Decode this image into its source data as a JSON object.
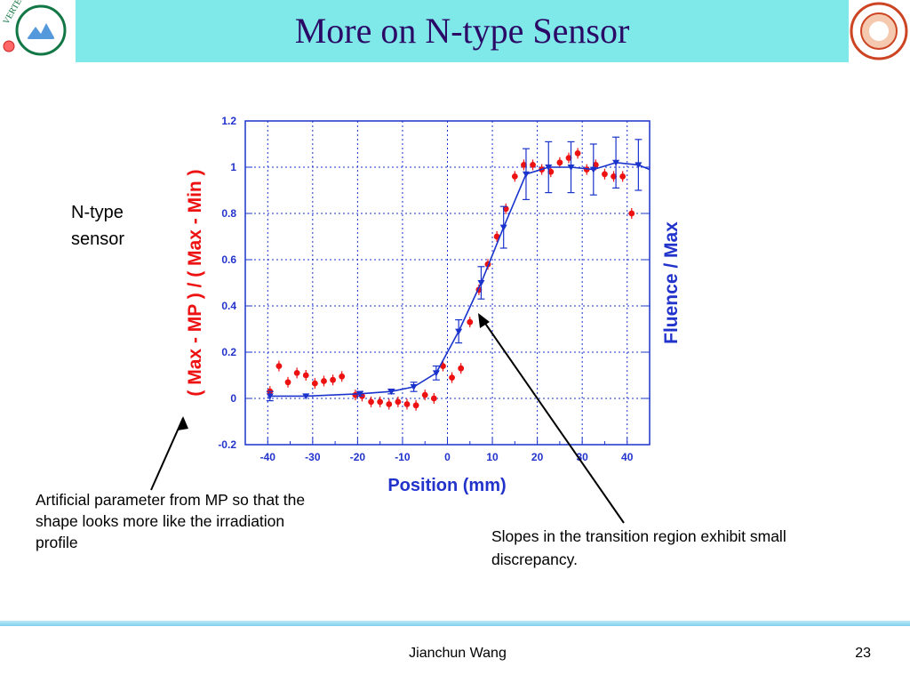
{
  "slide": {
    "title": "More on N-type Sensor",
    "label": "N-type\nsensor",
    "note_left": "Artificial parameter from MP so that the shape looks more like the irradiation profile",
    "note_right": "Slopes in the transition region exhibit small discrepancy.",
    "footer_author": "Jianchun Wang",
    "footer_page": "23"
  },
  "logos": {
    "left_text": "VERTEX LOCATOR",
    "right_text": "SYRACUSE UNIVERSITY FOUNDED AD 1870"
  },
  "chart_data": {
    "type": "scatter",
    "xlabel": "Position (mm)",
    "ylabel_left": "( Max - MP ) / ( Max - Min )",
    "ylabel_right": "Fluence / Max",
    "xlim": [
      -45,
      45
    ],
    "ylim": [
      -0.2,
      1.2
    ],
    "xticks": [
      -40,
      -30,
      -20,
      -10,
      0,
      10,
      20,
      30,
      40
    ],
    "yticks": [
      -0.2,
      0,
      0.2,
      0.4,
      0.6,
      0.8,
      1,
      1.2
    ],
    "grid": true,
    "colors": {
      "red_series": "#ee1111",
      "blue_series": "#1a33cc",
      "axis_labels": "#2233cc"
    },
    "series": [
      {
        "marker": "circle",
        "points": [
          {
            "x": -39.5,
            "y": 0.03
          },
          {
            "x": -37.5,
            "y": 0.14
          },
          {
            "x": -35.5,
            "y": 0.07
          },
          {
            "x": -33.5,
            "y": 0.11
          },
          {
            "x": -31.5,
            "y": 0.1
          },
          {
            "x": -29.5,
            "y": 0.065
          },
          {
            "x": -27.5,
            "y": 0.075
          },
          {
            "x": -25.5,
            "y": 0.08
          },
          {
            "x": -23.5,
            "y": 0.095
          },
          {
            "x": -20.5,
            "y": 0.015
          },
          {
            "x": -19,
            "y": 0.01
          },
          {
            "x": -17,
            "y": -0.015
          },
          {
            "x": -15,
            "y": -0.015
          },
          {
            "x": -13,
            "y": -0.025
          },
          {
            "x": -11,
            "y": -0.015
          },
          {
            "x": -9,
            "y": -0.025
          },
          {
            "x": -7,
            "y": -0.03
          },
          {
            "x": -5,
            "y": 0.015
          },
          {
            "x": -3,
            "y": 0.0
          },
          {
            "x": -1,
            "y": 0.14
          },
          {
            "x": 1,
            "y": 0.09
          },
          {
            "x": 3,
            "y": 0.13
          },
          {
            "x": 5,
            "y": 0.33
          },
          {
            "x": 7,
            "y": 0.47
          },
          {
            "x": 9,
            "y": 0.58
          },
          {
            "x": 11,
            "y": 0.7
          },
          {
            "x": 13,
            "y": 0.82
          },
          {
            "x": 15,
            "y": 0.96
          },
          {
            "x": 17,
            "y": 1.01
          },
          {
            "x": 19,
            "y": 1.01
          },
          {
            "x": 21,
            "y": 0.99
          },
          {
            "x": 23,
            "y": 0.98
          },
          {
            "x": 25,
            "y": 1.02
          },
          {
            "x": 27,
            "y": 1.04
          },
          {
            "x": 29,
            "y": 1.06
          },
          {
            "x": 31,
            "y": 0.99
          },
          {
            "x": 33,
            "y": 1.01
          },
          {
            "x": 35,
            "y": 0.97
          },
          {
            "x": 37,
            "y": 0.96
          },
          {
            "x": 39,
            "y": 0.96
          },
          {
            "x": 41,
            "y": 0.8
          }
        ]
      },
      {
        "marker": "triangle-down",
        "connected": true,
        "points": [
          {
            "x": -39.5,
            "y": 0.01,
            "err": 0.02
          },
          {
            "x": -31.5,
            "y": 0.01,
            "err": 0.0
          },
          {
            "x": -19.5,
            "y": 0.02,
            "err": 0.01
          },
          {
            "x": -12.5,
            "y": 0.03,
            "err": 0.01
          },
          {
            "x": -7.5,
            "y": 0.05,
            "err": 0.02
          },
          {
            "x": -2.5,
            "y": 0.11,
            "err": 0.03
          },
          {
            "x": 2.5,
            "y": 0.29,
            "err": 0.05
          },
          {
            "x": 7.5,
            "y": 0.5,
            "err": 0.07
          },
          {
            "x": 12.5,
            "y": 0.74,
            "err": 0.09
          },
          {
            "x": 17.5,
            "y": 0.97,
            "err": 0.11
          },
          {
            "x": 22.5,
            "y": 1.0,
            "err": 0.11
          },
          {
            "x": 27.5,
            "y": 1.0,
            "err": 0.11
          },
          {
            "x": 32.5,
            "y": 0.99,
            "err": 0.11
          },
          {
            "x": 37.5,
            "y": 1.02,
            "err": 0.11
          },
          {
            "x": 42.5,
            "y": 1.01,
            "err": 0.11
          },
          {
            "x": 45,
            "y": 0.99
          }
        ]
      }
    ]
  }
}
